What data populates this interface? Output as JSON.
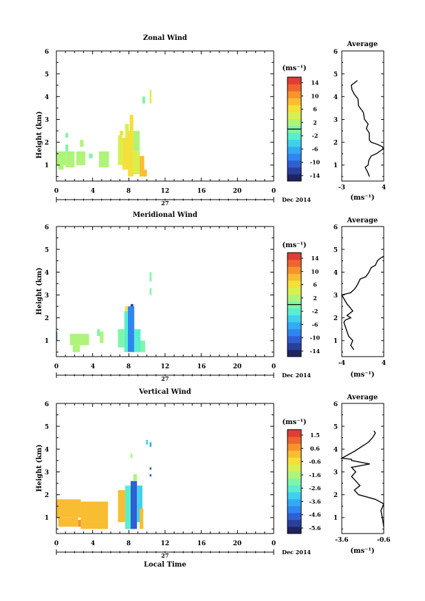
{
  "colormap": [
    "#1e2460",
    "#2a3f9a",
    "#2f5fd4",
    "#2f86f0",
    "#33aaf4",
    "#3fd0ee",
    "#58eecf",
    "#7ff5a8",
    "#aef47a",
    "#d8ef4e",
    "#f4e03a",
    "#f8bd32",
    "#f6932c",
    "#ee6530",
    "#e23c34"
  ],
  "chart_data": [
    {
      "type": "heatmap",
      "title": "Zonal Wind",
      "ylabel": "Height (km)",
      "yticks": [
        1,
        2,
        3,
        4,
        5,
        6
      ],
      "ylim": [
        0.3,
        6
      ],
      "xticks": [
        0,
        4,
        8,
        12,
        16,
        20
      ],
      "xlim": [
        0,
        24
      ],
      "date_day": "27",
      "date_label": "Dec 2014",
      "colorbar_unit": "(ms⁻¹)",
      "colorbar_ticks": [
        "14",
        "10",
        "6",
        "2",
        "-2",
        "-6",
        "-10",
        "-14"
      ],
      "colorbar_range": [
        -16,
        16
      ],
      "colorbar_zero_line": 0,
      "cells": [
        {
          "x0": 0.0,
          "x1": 1.0,
          "y0": 1.0,
          "y1": 1.6,
          "v": 3
        },
        {
          "x0": 0.2,
          "x1": 0.8,
          "y0": 0.8,
          "y1": 1.0,
          "v": 2
        },
        {
          "x0": 1.0,
          "x1": 2.0,
          "y0": 0.9,
          "y1": 1.6,
          "v": 2
        },
        {
          "x0": 1.0,
          "x1": 1.3,
          "y0": 1.6,
          "y1": 1.9,
          "v": 1
        },
        {
          "x0": 1.0,
          "x1": 1.3,
          "y0": 2.2,
          "y1": 2.4,
          "v": 1
        },
        {
          "x0": 2.2,
          "x1": 3.2,
          "y0": 1.0,
          "y1": 1.6,
          "v": 2
        },
        {
          "x0": 2.6,
          "x1": 3.0,
          "y0": 1.8,
          "y1": 2.1,
          "v": 3
        },
        {
          "x0": 3.6,
          "x1": 4.0,
          "y0": 1.3,
          "y1": 1.5,
          "v": -1
        },
        {
          "x0": 4.7,
          "x1": 5.8,
          "y0": 0.9,
          "y1": 1.6,
          "v": 2
        },
        {
          "x0": 6.8,
          "x1": 7.3,
          "y0": 1.0,
          "y1": 2.3,
          "v": 5
        },
        {
          "x0": 7.0,
          "x1": 7.4,
          "y0": 2.3,
          "y1": 2.5,
          "v": 6
        },
        {
          "x0": 7.3,
          "x1": 7.9,
          "y0": 0.8,
          "y1": 2.2,
          "v": 6
        },
        {
          "x0": 7.6,
          "x1": 8.0,
          "y0": 2.2,
          "y1": 2.8,
          "v": 5
        },
        {
          "x0": 7.9,
          "x1": 8.5,
          "y0": 0.5,
          "y1": 2.5,
          "v": 7
        },
        {
          "x0": 8.1,
          "x1": 8.5,
          "y0": 2.5,
          "y1": 3.2,
          "v": 7
        },
        {
          "x0": 8.5,
          "x1": 9.2,
          "y0": 1.6,
          "y1": 2.5,
          "v": 3
        },
        {
          "x0": 8.5,
          "x1": 9.2,
          "y0": 0.6,
          "y1": 1.6,
          "v": 5
        },
        {
          "x0": 9.2,
          "x1": 9.7,
          "y0": 0.5,
          "y1": 1.4,
          "v": 8
        },
        {
          "x0": 9.5,
          "x1": 9.8,
          "y0": 3.7,
          "y1": 4.0,
          "v": -1
        },
        {
          "x0": 9.7,
          "x1": 10.0,
          "y0": 0.5,
          "y1": 0.8,
          "v": 8
        },
        {
          "x0": 10.3,
          "x1": 10.5,
          "y0": 3.7,
          "y1": 4.3,
          "v": 4
        }
      ]
    },
    {
      "type": "heatmap",
      "title": "Meridional Wind",
      "ylabel": "Height (km)",
      "yticks": [
        1,
        2,
        3,
        4,
        5,
        6
      ],
      "ylim": [
        0.3,
        6
      ],
      "xticks": [
        0,
        4,
        8,
        12,
        16,
        20
      ],
      "xlim": [
        0,
        24
      ],
      "date_day": "27",
      "date_label": "Dec 2014",
      "colorbar_unit": "(ms⁻¹)",
      "colorbar_ticks": [
        "14",
        "10",
        "6",
        "2",
        "-2",
        "-6",
        "-10",
        "-14"
      ],
      "colorbar_range": [
        -16,
        16
      ],
      "colorbar_zero_line": 0,
      "cells": [
        {
          "x0": 0.0,
          "x1": 0.1,
          "y0": 1.0,
          "y1": 1.4,
          "v": -8
        },
        {
          "x0": 1.5,
          "x1": 3.6,
          "y0": 0.8,
          "y1": 1.3,
          "v": 2
        },
        {
          "x0": 1.8,
          "x1": 2.6,
          "y0": 0.5,
          "y1": 0.8,
          "v": 2
        },
        {
          "x0": 4.8,
          "x1": 5.2,
          "y0": 0.9,
          "y1": 1.4,
          "v": 2
        },
        {
          "x0": 4.5,
          "x1": 4.8,
          "y0": 1.2,
          "y1": 1.5,
          "v": 1
        },
        {
          "x0": 6.8,
          "x1": 7.5,
          "y0": 0.7,
          "y1": 1.5,
          "v": 1
        },
        {
          "x0": 7.5,
          "x1": 7.9,
          "y0": 0.5,
          "y1": 2.3,
          "v": -2
        },
        {
          "x0": 7.6,
          "x1": 8.0,
          "y0": 2.3,
          "y1": 2.5,
          "v": 6
        },
        {
          "x0": 7.9,
          "x1": 8.6,
          "y0": 0.5,
          "y1": 2.5,
          "v": -9
        },
        {
          "x0": 8.2,
          "x1": 8.5,
          "y0": 2.5,
          "y1": 2.6,
          "v": -12
        },
        {
          "x0": 8.6,
          "x1": 9.3,
          "y0": 0.5,
          "y1": 1.5,
          "v": -2
        },
        {
          "x0": 9.3,
          "x1": 9.8,
          "y0": 0.5,
          "y1": 1.0,
          "v": 1
        },
        {
          "x0": 10.3,
          "x1": 10.5,
          "y0": 3.0,
          "y1": 3.3,
          "v": 0
        },
        {
          "x0": 10.3,
          "x1": 10.5,
          "y0": 3.6,
          "y1": 4.0,
          "v": 1
        }
      ]
    },
    {
      "type": "heatmap",
      "title": "Vertical Wind",
      "ylabel": "Height (km)",
      "xlabel": "Local Time",
      "yticks": [
        1,
        2,
        3,
        4,
        5,
        6
      ],
      "ylim": [
        0.3,
        6
      ],
      "xticks": [
        0,
        4,
        8,
        12,
        16,
        20
      ],
      "xlim": [
        0,
        24
      ],
      "date_day": "27",
      "date_label": "Dec 2014",
      "colorbar_unit": "(ms⁻¹)",
      "colorbar_ticks": [
        "1.5",
        "0.6",
        "-0.6",
        "-1.6",
        "-2.6",
        "-3.6",
        "-4.6",
        "-5.6"
      ],
      "colorbar_range": [
        -6.1,
        1.9
      ],
      "colorbar_zero_line": null,
      "cells": [
        {
          "x0": 0.0,
          "x1": 2.7,
          "y0": 1.0,
          "y1": 1.8,
          "v": 0.2
        },
        {
          "x0": 0.2,
          "x1": 2.4,
          "y0": 0.6,
          "y1": 1.0,
          "v": 0.2
        },
        {
          "x0": 2.4,
          "x1": 2.7,
          "y0": 0.6,
          "y1": 0.9,
          "v": 0.8
        },
        {
          "x0": 2.7,
          "x1": 5.7,
          "y0": 0.5,
          "y1": 1.7,
          "v": 0.2
        },
        {
          "x0": 2.7,
          "x1": 3.2,
          "y0": 0.8,
          "y1": 1.1,
          "v": 0.0
        },
        {
          "x0": 6.8,
          "x1": 7.6,
          "y0": 0.8,
          "y1": 2.2,
          "v": 0.1
        },
        {
          "x0": 7.6,
          "x1": 8.2,
          "y0": 0.5,
          "y1": 2.4,
          "v": -2.8
        },
        {
          "x0": 8.2,
          "x1": 8.9,
          "y0": 0.5,
          "y1": 2.6,
          "v": -5.0
        },
        {
          "x0": 8.9,
          "x1": 9.5,
          "y0": 0.8,
          "y1": 2.4,
          "v": -3.2
        },
        {
          "x0": 8.5,
          "x1": 8.9,
          "y0": 2.6,
          "y1": 2.9,
          "v": -1.8
        },
        {
          "x0": 9.2,
          "x1": 9.6,
          "y0": 0.5,
          "y1": 1.4,
          "v": 0.0
        },
        {
          "x0": 8.2,
          "x1": 8.4,
          "y0": 3.6,
          "y1": 3.8,
          "v": -1.6
        },
        {
          "x0": 9.9,
          "x1": 10.1,
          "y0": 4.2,
          "y1": 4.4,
          "v": -3.1
        },
        {
          "x0": 10.3,
          "x1": 10.5,
          "y0": 4.1,
          "y1": 4.3,
          "v": -3.8
        },
        {
          "x0": 10.3,
          "x1": 10.5,
          "y0": 3.1,
          "y1": 3.2,
          "v": -4.6
        },
        {
          "x0": 10.3,
          "x1": 10.5,
          "y0": 2.8,
          "y1": 2.9,
          "v": -4.6
        }
      ]
    }
  ],
  "averages": [
    {
      "title": "Average",
      "xlabel": "(ms⁻¹)",
      "xticks": [
        "-3",
        "4"
      ],
      "xtick_values": [
        -3,
        4
      ],
      "xlim": [
        -3,
        4
      ],
      "yticks": [
        1,
        2,
        3,
        4,
        5,
        6
      ],
      "ylim": [
        0.3,
        6
      ],
      "profile": [
        [
          1.6,
          0.5
        ],
        [
          1.3,
          0.7
        ],
        [
          0.9,
          0.9
        ],
        [
          1.4,
          1.0
        ],
        [
          1.5,
          1.2
        ],
        [
          1.9,
          1.4
        ],
        [
          2.8,
          1.5
        ],
        [
          3.3,
          1.6
        ],
        [
          3.9,
          1.7
        ],
        [
          3.8,
          1.8
        ],
        [
          3.0,
          1.9
        ],
        [
          1.9,
          2.0
        ],
        [
          1.6,
          2.1
        ],
        [
          1.6,
          2.4
        ],
        [
          1.1,
          2.6
        ],
        [
          1.4,
          2.8
        ],
        [
          0.8,
          3.0
        ],
        [
          0.6,
          3.3
        ],
        [
          -0.2,
          3.6
        ],
        [
          -0.3,
          3.9
        ],
        [
          -0.9,
          4.1
        ],
        [
          -1.3,
          4.3
        ],
        [
          -1.4,
          4.5
        ],
        [
          -0.9,
          4.6
        ],
        [
          -0.4,
          4.7
        ]
      ]
    },
    {
      "title": "Average",
      "xlabel": "(ms⁻¹)",
      "xticks": [
        "-4",
        "4"
      ],
      "xtick_values": [
        -4,
        4
      ],
      "xlim": [
        -4,
        4
      ],
      "yticks": [
        1,
        2,
        3,
        4,
        5,
        6
      ],
      "ylim": [
        0.3,
        6
      ],
      "profile": [
        [
          -1.7,
          0.6
        ],
        [
          -2.3,
          0.8
        ],
        [
          -1.9,
          1.0
        ],
        [
          -2.7,
          1.2
        ],
        [
          -3.0,
          1.4
        ],
        [
          -3.3,
          1.6
        ],
        [
          -3.6,
          1.8
        ],
        [
          -3.3,
          1.9
        ],
        [
          -2.3,
          2.0
        ],
        [
          -3.0,
          2.1
        ],
        [
          -1.9,
          2.3
        ],
        [
          -2.6,
          2.5
        ],
        [
          -3.0,
          2.6
        ],
        [
          -3.5,
          2.8
        ],
        [
          -4.0,
          3.0
        ],
        [
          -2.3,
          3.1
        ],
        [
          -1.4,
          3.3
        ],
        [
          -0.9,
          3.5
        ],
        [
          -0.5,
          3.7
        ],
        [
          0.6,
          3.8
        ],
        [
          1.2,
          4.0
        ],
        [
          1.6,
          4.2
        ],
        [
          2.4,
          4.3
        ],
        [
          2.8,
          4.5
        ],
        [
          3.3,
          4.6
        ],
        [
          4.0,
          4.7
        ]
      ]
    },
    {
      "title": "Average",
      "xlabel": "(ms⁻¹)",
      "xticks": [
        "-3.6",
        "-0.6"
      ],
      "xtick_values": [
        -3.6,
        -0.6
      ],
      "xlim": [
        -3.6,
        -0.6
      ],
      "yticks": [
        1,
        2,
        3,
        4,
        5,
        6
      ],
      "ylim": [
        0.3,
        6
      ],
      "profile": [
        [
          -0.6,
          0.6
        ],
        [
          -0.7,
          1.0
        ],
        [
          -0.8,
          1.3
        ],
        [
          -0.6,
          1.6
        ],
        [
          -1.2,
          1.8
        ],
        [
          -2.4,
          2.0
        ],
        [
          -2.7,
          2.2
        ],
        [
          -2.3,
          2.4
        ],
        [
          -2.6,
          2.6
        ],
        [
          -2.9,
          2.8
        ],
        [
          -2.6,
          3.0
        ],
        [
          -2.9,
          3.2
        ],
        [
          -1.6,
          3.35
        ],
        [
          -2.9,
          3.5
        ],
        [
          -2.9,
          3.55
        ],
        [
          -3.6,
          3.6
        ],
        [
          -2.7,
          3.9
        ],
        [
          -2.2,
          4.1
        ],
        [
          -1.7,
          4.3
        ],
        [
          -1.4,
          4.5
        ],
        [
          -1.2,
          4.7
        ],
        [
          -1.3,
          4.8
        ]
      ]
    }
  ]
}
